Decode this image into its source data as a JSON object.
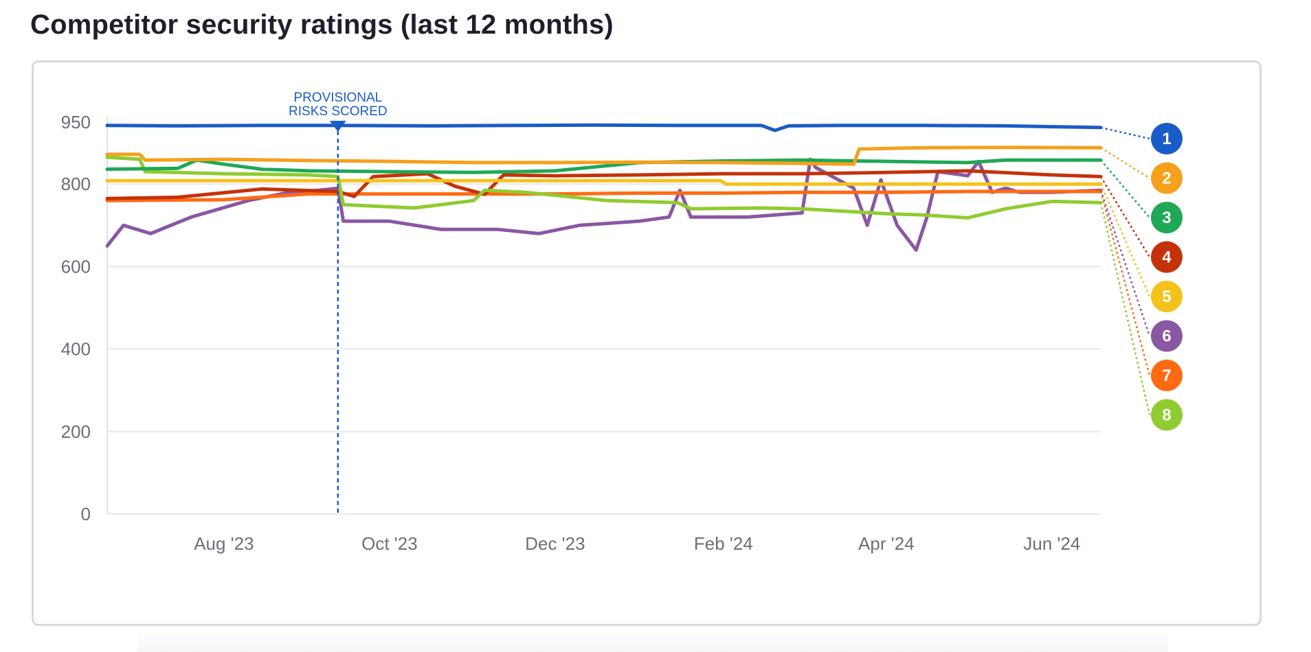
{
  "page": {
    "title": "Competitor security ratings (last 12 months)"
  },
  "chart_data": {
    "type": "line",
    "title": "Competitor security ratings (last 12 months)",
    "xlabel": "",
    "ylabel": "",
    "ylim": [
      0,
      950
    ],
    "yticks": [
      0,
      200,
      400,
      600,
      800,
      950
    ],
    "x_range": [
      "2023-06-19",
      "2024-06-19"
    ],
    "xticks": [
      {
        "date": "2023-08-01",
        "label": "Aug '23"
      },
      {
        "date": "2023-10-01",
        "label": "Oct '23"
      },
      {
        "date": "2023-12-01",
        "label": "Dec '23"
      },
      {
        "date": "2024-02-01",
        "label": "Feb '24"
      },
      {
        "date": "2024-04-01",
        "label": "Apr '24"
      },
      {
        "date": "2024-06-01",
        "label": "Jun '24"
      }
    ],
    "grid": true,
    "legend": "right (numbered badges)",
    "annotation": {
      "date": "2023-09-12",
      "text_lines": [
        "PROVISIONAL",
        "RISKS SCORED"
      ],
      "color": "#1a5cc7"
    },
    "series": [
      {
        "badge": "1",
        "color": "#1a5cc7",
        "x": [
          "2023-06-19",
          "2023-07-15",
          "2023-08-15",
          "2023-09-12",
          "2023-10-15",
          "2023-11-15",
          "2023-12-15",
          "2024-01-15",
          "2024-02-15",
          "2024-02-20",
          "2024-02-25",
          "2024-03-15",
          "2024-04-15",
          "2024-05-15",
          "2024-06-19"
        ],
        "values": [
          942,
          941,
          942,
          942,
          941,
          942,
          943,
          942,
          942,
          930,
          941,
          942,
          942,
          941,
          937
        ]
      },
      {
        "badge": "2",
        "color": "#f7a01c",
        "x": [
          "2023-06-19",
          "2023-07-01",
          "2023-07-03",
          "2023-08-01",
          "2023-09-01",
          "2023-10-01",
          "2023-11-01",
          "2023-12-01",
          "2024-01-01",
          "2024-02-01",
          "2024-03-01",
          "2024-03-20",
          "2024-03-22",
          "2024-04-15",
          "2024-05-15",
          "2024-06-19"
        ],
        "values": [
          872,
          872,
          858,
          860,
          857,
          855,
          852,
          852,
          853,
          852,
          850,
          848,
          885,
          888,
          889,
          888
        ]
      },
      {
        "badge": "3",
        "color": "#1fa855",
        "x": [
          "2023-06-19",
          "2023-07-15",
          "2023-07-22",
          "2023-08-01",
          "2023-08-15",
          "2023-09-01",
          "2023-10-01",
          "2023-11-01",
          "2023-12-01",
          "2024-01-01",
          "2024-02-01",
          "2024-03-01",
          "2024-04-01",
          "2024-05-01",
          "2024-05-15",
          "2024-06-19"
        ],
        "values": [
          836,
          838,
          858,
          848,
          836,
          832,
          830,
          828,
          832,
          852,
          856,
          858,
          855,
          852,
          858,
          858
        ]
      },
      {
        "badge": "4",
        "color": "#c4320a",
        "x": [
          "2023-06-19",
          "2023-07-15",
          "2023-08-15",
          "2023-09-12",
          "2023-09-18",
          "2023-09-25",
          "2023-10-15",
          "2023-10-25",
          "2023-11-05",
          "2023-11-12",
          "2023-12-01",
          "2024-01-01",
          "2024-02-01",
          "2024-03-01",
          "2024-04-01",
          "2024-05-01",
          "2024-06-01",
          "2024-06-19"
        ],
        "values": [
          765,
          768,
          788,
          782,
          770,
          818,
          825,
          795,
          775,
          822,
          820,
          822,
          825,
          825,
          828,
          832,
          822,
          818
        ]
      },
      {
        "badge": "5",
        "color": "#f5c21b",
        "x": [
          "2023-06-19",
          "2023-08-01",
          "2023-09-01",
          "2023-10-01",
          "2023-11-01",
          "2023-12-01",
          "2024-01-01",
          "2024-01-31",
          "2024-02-02",
          "2024-03-01",
          "2024-04-01",
          "2024-05-01",
          "2024-06-19"
        ],
        "values": [
          808,
          808,
          808,
          808,
          808,
          808,
          808,
          808,
          800,
          800,
          800,
          800,
          800
        ]
      },
      {
        "badge": "6",
        "color": "#8a57a3",
        "x": [
          "2023-06-19",
          "2023-06-25",
          "2023-07-05",
          "2023-07-20",
          "2023-08-10",
          "2023-08-25",
          "2023-09-05",
          "2023-09-12",
          "2023-09-14",
          "2023-10-01",
          "2023-10-20",
          "2023-11-10",
          "2023-11-25",
          "2023-12-10",
          "2024-01-01",
          "2024-01-12",
          "2024-01-16",
          "2024-01-20",
          "2024-02-10",
          "2024-03-01",
          "2024-03-04",
          "2024-03-06",
          "2024-03-20",
          "2024-03-25",
          "2024-03-30",
          "2024-04-05",
          "2024-04-12",
          "2024-04-16",
          "2024-04-20",
          "2024-05-01",
          "2024-05-05",
          "2024-05-10",
          "2024-05-15",
          "2024-05-20",
          "2024-06-01",
          "2024-06-19"
        ],
        "values": [
          650,
          700,
          680,
          720,
          760,
          780,
          785,
          790,
          710,
          710,
          690,
          690,
          680,
          700,
          710,
          720,
          785,
          720,
          720,
          730,
          860,
          840,
          790,
          700,
          810,
          700,
          640,
          720,
          830,
          820,
          855,
          780,
          790,
          780,
          780,
          785
        ]
      },
      {
        "badge": "7",
        "color": "#ff6a13",
        "x": [
          "2023-06-19",
          "2023-08-01",
          "2023-09-01",
          "2023-10-01",
          "2023-11-01",
          "2023-12-01",
          "2024-01-01",
          "2024-02-01",
          "2024-03-01",
          "2024-04-01",
          "2024-05-01",
          "2024-06-19"
        ],
        "values": [
          760,
          762,
          776,
          776,
          776,
          776,
          778,
          778,
          780,
          780,
          782,
          782
        ]
      },
      {
        "badge": "8",
        "color": "#8fcc2f",
        "x": [
          "2023-06-19",
          "2023-07-01",
          "2023-07-03",
          "2023-08-01",
          "2023-09-01",
          "2023-09-12",
          "2023-09-14",
          "2023-10-10",
          "2023-10-20",
          "2023-11-01",
          "2023-11-05",
          "2023-11-20",
          "2023-12-20",
          "2024-01-15",
          "2024-01-20",
          "2024-02-15",
          "2024-03-01",
          "2024-04-01",
          "2024-04-15",
          "2024-05-01",
          "2024-05-15",
          "2024-06-01",
          "2024-06-19"
        ],
        "values": [
          865,
          860,
          830,
          825,
          822,
          818,
          750,
          742,
          750,
          760,
          785,
          780,
          760,
          755,
          740,
          742,
          740,
          728,
          725,
          718,
          740,
          758,
          755
        ]
      }
    ]
  }
}
